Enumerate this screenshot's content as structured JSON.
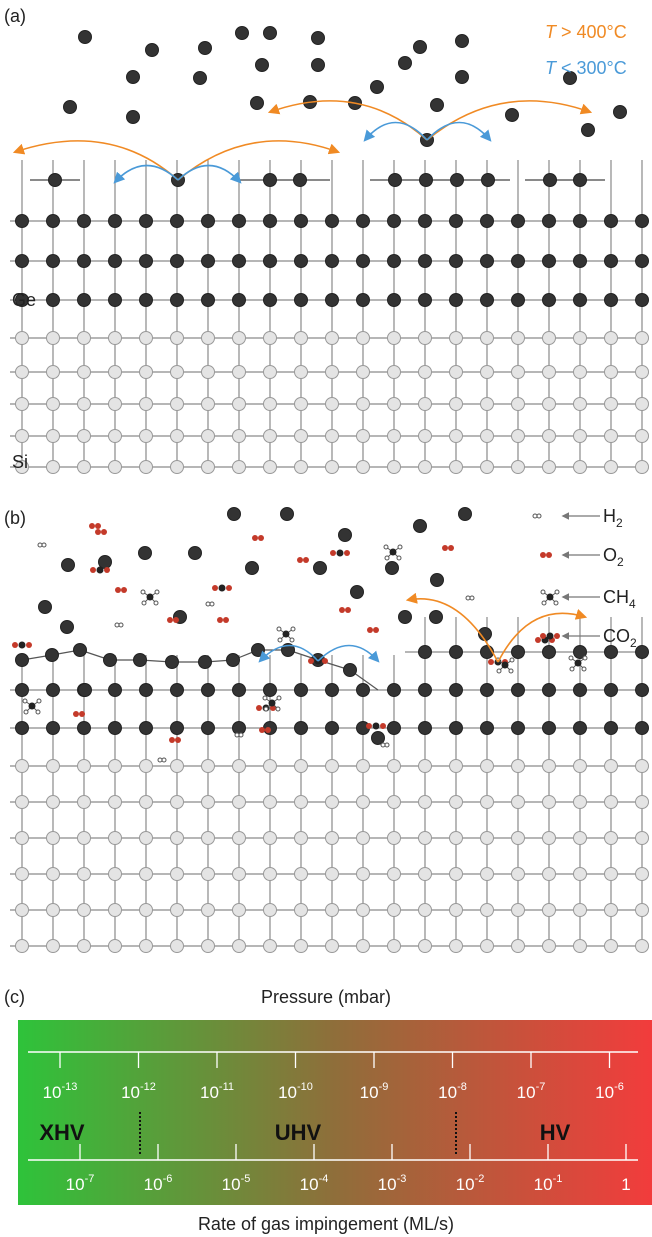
{
  "panel_a": {
    "label": "(a)",
    "temperatures": [
      {
        "symbol": "T",
        "text": " > 400°C"
      },
      {
        "symbol": "T",
        "text": " < 300°C"
      }
    ],
    "layers": [
      "Ge",
      "Si"
    ]
  },
  "panel_b": {
    "label": "(b)",
    "gases": [
      {
        "base": "H",
        "sub": "2"
      },
      {
        "base": "O",
        "sub": "2"
      },
      {
        "base": "CH",
        "sub": "4"
      },
      {
        "base": "CO",
        "sub": "2"
      }
    ]
  },
  "panel_c": {
    "label": "(c)",
    "top_title": "Pressure (mbar)",
    "pressure_ticks": [
      {
        "base": "10",
        "exp": "-13"
      },
      {
        "base": "10",
        "exp": "-12"
      },
      {
        "base": "10",
        "exp": "-11"
      },
      {
        "base": "10",
        "exp": "-10"
      },
      {
        "base": "10",
        "exp": "-9"
      },
      {
        "base": "10",
        "exp": "-8"
      },
      {
        "base": "10",
        "exp": "-7"
      },
      {
        "base": "10",
        "exp": "-6"
      }
    ],
    "regimes": [
      "XHV",
      "UHV",
      "HV"
    ],
    "rate_ticks": [
      {
        "base": "10",
        "exp": "-7"
      },
      {
        "base": "10",
        "exp": "-6"
      },
      {
        "base": "10",
        "exp": "-5"
      },
      {
        "base": "10",
        "exp": "-4"
      },
      {
        "base": "10",
        "exp": "-3"
      },
      {
        "base": "10",
        "exp": "-2"
      },
      {
        "base": "10",
        "exp": "-1"
      },
      {
        "base": "1"
      }
    ],
    "bottom_title": "Rate of gas impingement (ML/s)"
  }
}
